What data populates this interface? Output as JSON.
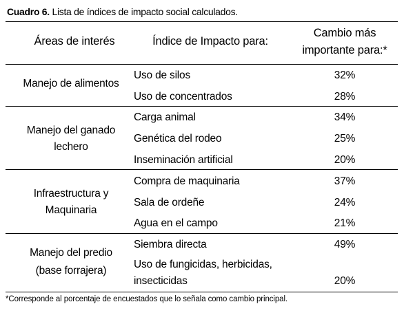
{
  "caption": {
    "label": "Cuadro 6.",
    "text": " Lista de índices de impacto social calculados."
  },
  "header": {
    "col1": "Áreas de interés",
    "col2": "Índice de Impacto para:",
    "col3_line1": "Cambio más",
    "col3_line2": "importante para:*"
  },
  "groups": [
    {
      "area_lines": [
        "Manejo de alimentos"
      ],
      "rows": [
        {
          "index": "Uso de silos",
          "pct": "32%"
        },
        {
          "index": "Uso de concentrados",
          "pct": "28%"
        }
      ]
    },
    {
      "area_lines": [
        "Manejo del ganado",
        "lechero"
      ],
      "rows": [
        {
          "index": "Carga animal",
          "pct": "34%"
        },
        {
          "index": "Genética del rodeo",
          "pct": "25%"
        },
        {
          "index": "Inseminación artificial",
          "pct": "20%"
        }
      ]
    },
    {
      "area_lines": [
        "Infraestructura y",
        "Maquinaria"
      ],
      "rows": [
        {
          "index": "Compra de maquinaria",
          "pct": "37%"
        },
        {
          "index": "Sala de ordeñe",
          "pct": "24%"
        },
        {
          "index": "Agua en el campo",
          "pct": "21%"
        }
      ]
    },
    {
      "area_lines": [
        "Manejo del predio",
        "(base forrajera)"
      ],
      "rows": [
        {
          "index": "Siembra directa",
          "pct": "49%"
        },
        {
          "index_line1": "Uso de fungicidas, herbicidas,",
          "index_line2": "insecticidas",
          "pct": "20%"
        }
      ]
    }
  ],
  "footnote": "*Corresponde al porcentaje de encuestados que lo señala como cambio principal."
}
